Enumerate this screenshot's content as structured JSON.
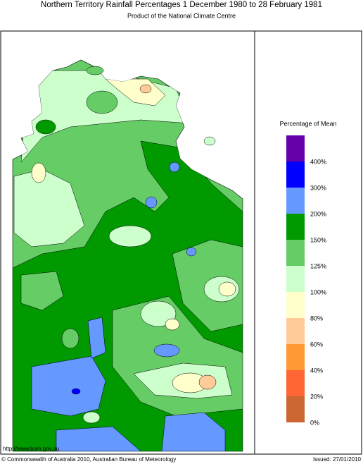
{
  "header": {
    "title": "Northern Territory Rainfall Percentages 1 December 1980 to 28 February 1981",
    "subtitle": "Product of the National Climate Centre"
  },
  "legend": {
    "title": "Percentage of Mean",
    "labels": [
      "400%",
      "300%",
      "200%",
      "150%",
      "125%",
      "100%",
      "80%",
      "60%",
      "40%",
      "20%",
      "0%"
    ]
  },
  "footer": {
    "url": "http://www.bom.gov.au",
    "copyright": "© Commonwealth of Australia 2010, Australian Bureau of Meteorology",
    "issued": "Issued: 27/01/2010"
  }
}
